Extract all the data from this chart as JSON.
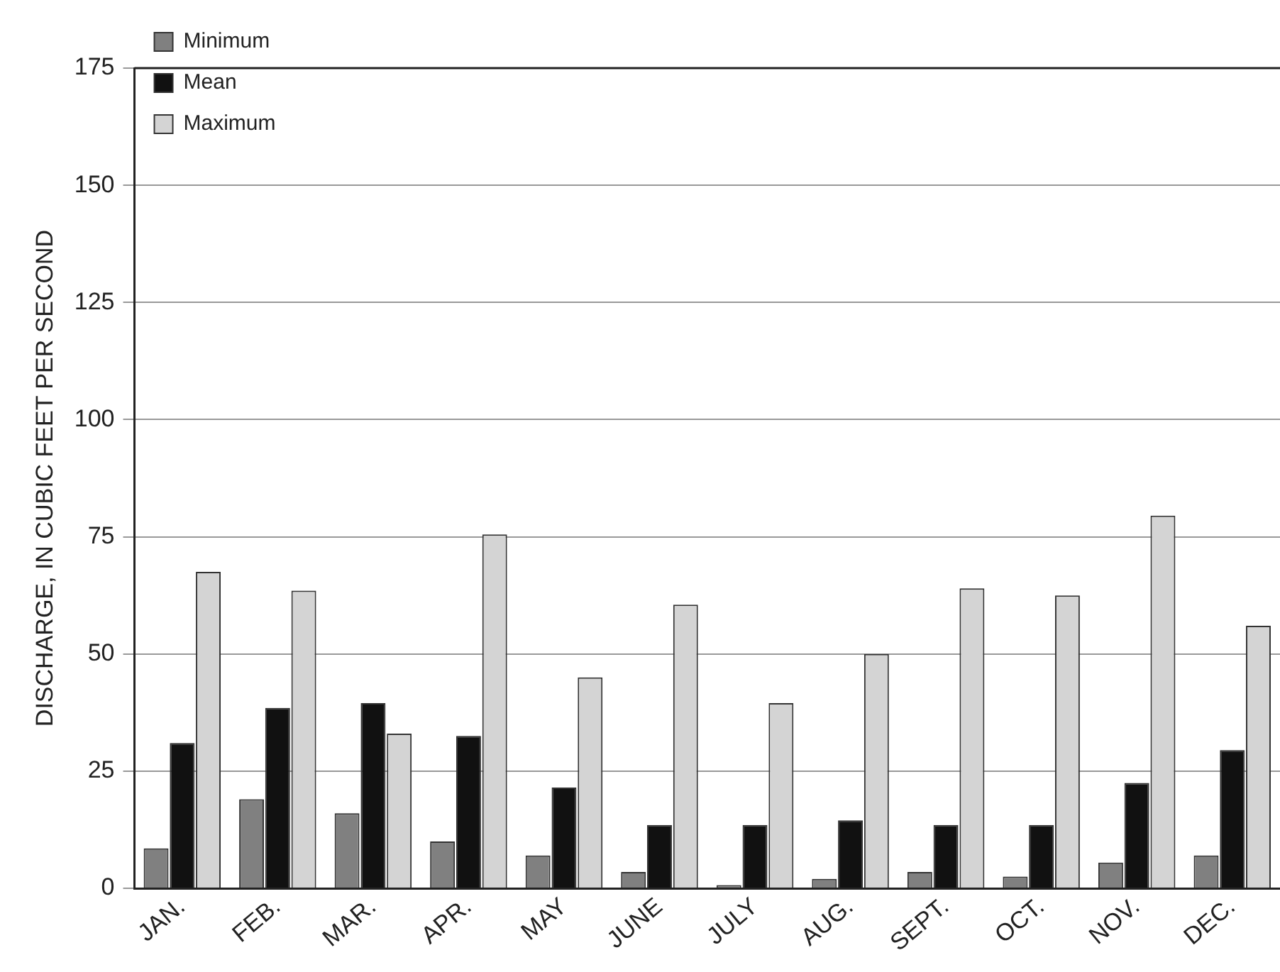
{
  "chart_data": {
    "type": "bar",
    "ylabel": "DISCHARGE, IN CUBIC FEET PER SECOND",
    "categories": [
      "JAN.",
      "FEB.",
      "MAR.",
      "APR.",
      "MAY",
      "JUNE",
      "JULY",
      "AUG.",
      "SEPT.",
      "OCT.",
      "NOV.",
      "DEC."
    ],
    "series": [
      {
        "name": "Minimum",
        "color": "#808080",
        "values": [
          8.5,
          19,
          16,
          10,
          7,
          3.5,
          0.7,
          2,
          3.5,
          2.5,
          5.5,
          7
        ]
      },
      {
        "name": "Mean",
        "color": "#111111",
        "values": [
          31,
          38.5,
          39.5,
          32.5,
          21.5,
          13.5,
          13.5,
          14.5,
          13.5,
          13.5,
          22.5,
          29.5
        ]
      },
      {
        "name": "Maximum",
        "color": "#d4d4d4",
        "values": [
          67.5,
          63.5,
          33,
          75.5,
          45,
          60.5,
          39.5,
          50,
          64,
          62.5,
          79.5,
          56
        ]
      }
    ],
    "ylim": [
      0,
      175
    ],
    "yticks": [
      0,
      25,
      50,
      75,
      100,
      125,
      150,
      175
    ],
    "grid": "y",
    "legend": "top left"
  }
}
